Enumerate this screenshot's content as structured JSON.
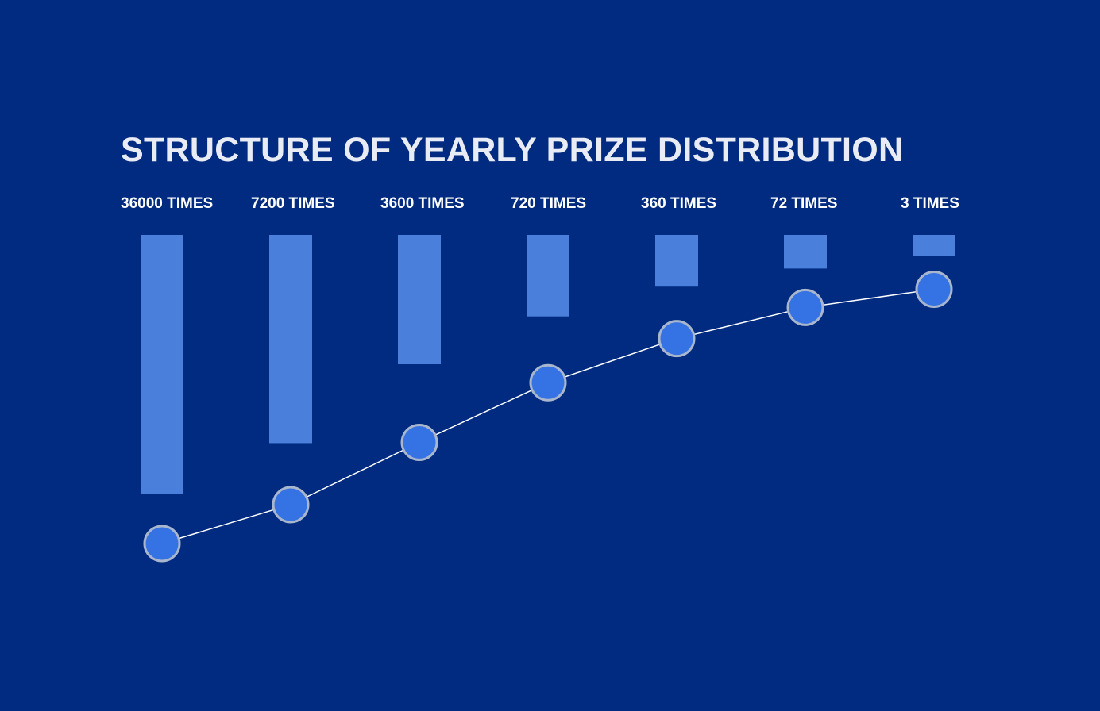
{
  "chart_data": {
    "type": "bar",
    "title": "STRUCTURE OF YEARLY PRIZE DISTRIBUTION",
    "categories": [
      "36000 TIMES",
      "7200 TIMES",
      "3600 TIMES",
      "720 TIMES",
      "360 TIMES",
      "72 TIMES",
      "3 TIMES"
    ],
    "series": [
      {
        "type": "bar",
        "values": [
          100,
          80.5,
          50,
          31.5,
          20,
          13,
          8
        ]
      },
      {
        "type": "line",
        "values": [
          0,
          15,
          39,
          62,
          79,
          91,
          98
        ]
      }
    ],
    "bars_hang_from_top": true,
    "grid": false,
    "legend": "none",
    "colors": {
      "background": "#002b80",
      "bar": "#4a7fdc",
      "marker_fill": "#3572e3",
      "marker_stroke": "#a9b6cc",
      "line": "#ffffff",
      "text": "#ffffff",
      "title": "#e9ecf4"
    }
  }
}
